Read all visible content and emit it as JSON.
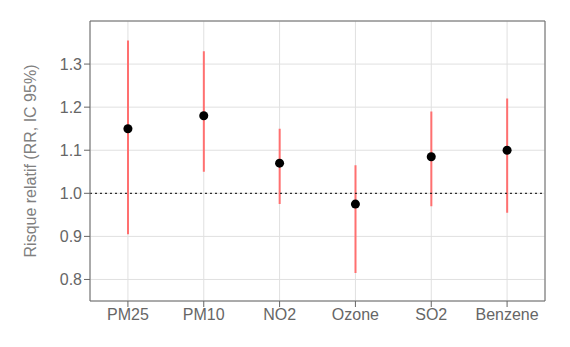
{
  "chart_data": {
    "type": "scatter",
    "ylabel": "Risque relatif (RR, IC 95%)",
    "categories": [
      "PM25",
      "PM10",
      "NO2",
      "Ozone",
      "SO2",
      "Benzene"
    ],
    "series": [
      {
        "type": "errorbar",
        "color": "#FF7070",
        "low": [
          0.905,
          1.05,
          0.975,
          0.815,
          0.97,
          0.955
        ],
        "high": [
          1.355,
          1.33,
          1.15,
          1.065,
          1.19,
          1.22
        ]
      },
      {
        "type": "scatter",
        "color": "#000000",
        "values": [
          1.15,
          1.18,
          1.07,
          0.975,
          1.085,
          1.1
        ]
      }
    ],
    "ref_line": 1.0,
    "ylim": [
      0.75,
      1.4
    ],
    "yticks": [
      0.8,
      0.9,
      {
        "value": 1.0,
        "label": "1.0"
      },
      1.1,
      1.2,
      1.3
    ],
    "grid": true
  }
}
